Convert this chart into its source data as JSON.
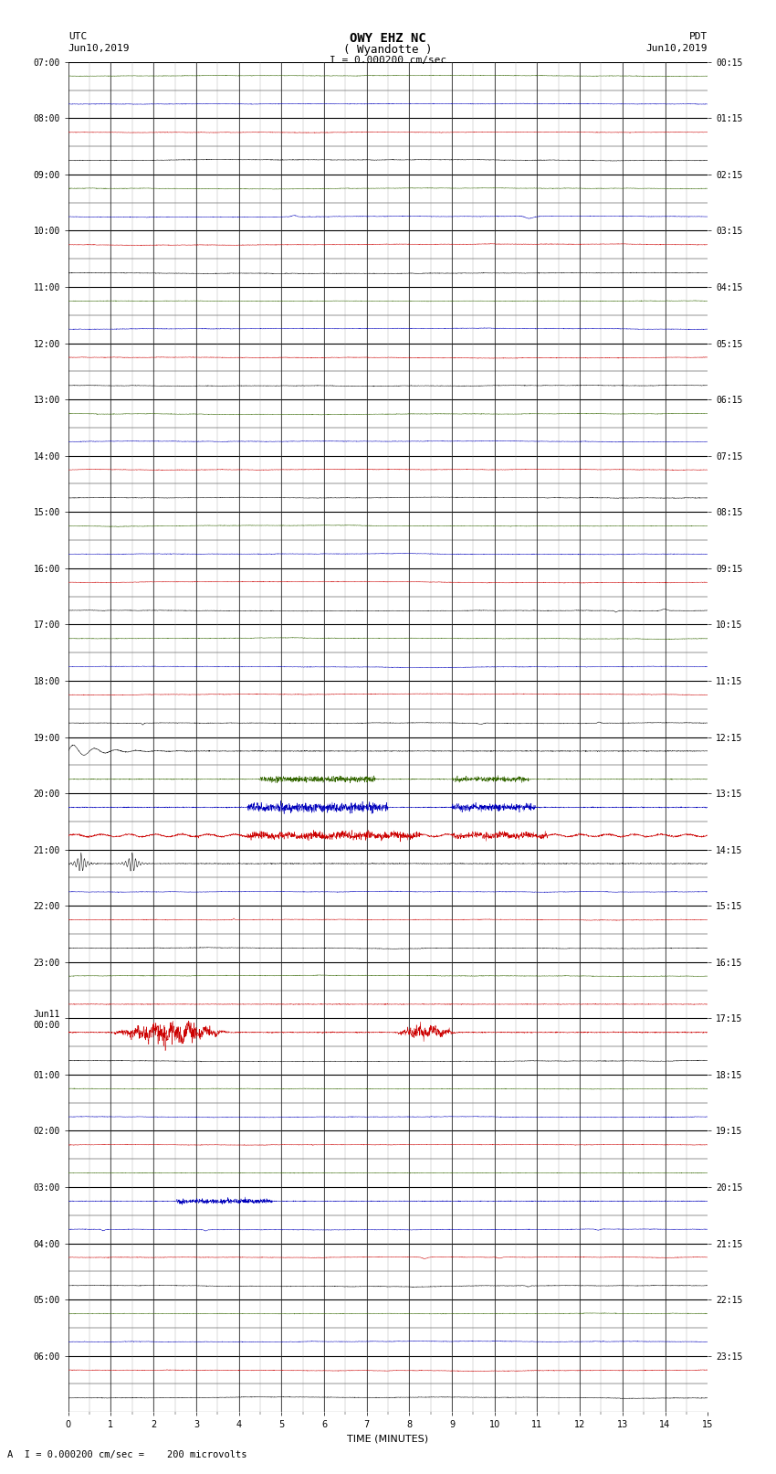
{
  "title_line1": "OWY EHZ NC",
  "title_line2": "( Wyandotte )",
  "scale_label": "I = 0.000200 cm/sec",
  "utc_label": "UTC",
  "utc_date": "Jun10,2019",
  "pdt_label": "PDT",
  "pdt_date": "Jun10,2019",
  "footer_label": "A  I = 0.000200 cm/sec =    200 microvolts",
  "xlabel": "TIME (MINUTES)",
  "left_times": [
    "07:00",
    "",
    "08:00",
    "",
    "09:00",
    "",
    "10:00",
    "",
    "11:00",
    "",
    "12:00",
    "",
    "13:00",
    "",
    "14:00",
    "",
    "15:00",
    "",
    "16:00",
    "",
    "17:00",
    "",
    "18:00",
    "",
    "19:00",
    "",
    "20:00",
    "",
    "21:00",
    "",
    "22:00",
    "",
    "23:00",
    "",
    "Jun11\n00:00",
    "",
    "01:00",
    "",
    "02:00",
    "",
    "03:00",
    "",
    "04:00",
    "",
    "05:00",
    "",
    "06:00",
    ""
  ],
  "right_times": [
    "00:15",
    "",
    "01:15",
    "",
    "02:15",
    "",
    "03:15",
    "",
    "04:15",
    "",
    "05:15",
    "",
    "06:15",
    "",
    "07:15",
    "",
    "08:15",
    "",
    "09:15",
    "",
    "10:15",
    "",
    "11:15",
    "",
    "12:15",
    "",
    "13:15",
    "",
    "14:15",
    "",
    "15:15",
    "",
    "16:15",
    "",
    "17:15",
    "",
    "18:15",
    "",
    "19:15",
    "",
    "20:15",
    "",
    "21:15",
    "",
    "22:15",
    "",
    "23:15",
    ""
  ],
  "n_rows": 48,
  "n_minutes": 15,
  "bg_color": "#ffffff",
  "grid_color": "#808080",
  "title_fontsize": 10,
  "label_fontsize": 8,
  "tick_fontsize": 7,
  "row_colors": [
    "#000000",
    "#cc0000",
    "#0000bb",
    "#000000",
    "#cc0000",
    "#0000bb",
    "#336600",
    "#000000",
    "#cc0000",
    "#0000bb",
    "#336600",
    "#000000",
    "#cc0000",
    "#0000bb",
    "#336600",
    "#000000",
    "#cc0000",
    "#0000bb",
    "#336600",
    "#000000",
    "#cc0000",
    "#0000bb",
    "#336600",
    "#000000",
    "#cc0000",
    "#0000bb",
    "#336600",
    "#000000",
    "#cc0000",
    "#0000bb",
    "#336600",
    "#000000",
    "#cc0000",
    "#0000bb",
    "#336600",
    "#000000",
    "#cc0000",
    "#0000bb",
    "#336600",
    "#000000",
    "#cc0000",
    "#0000bb",
    "#336600",
    "#000000",
    "#cc0000",
    "#0000bb",
    "#336600",
    "#000000"
  ]
}
